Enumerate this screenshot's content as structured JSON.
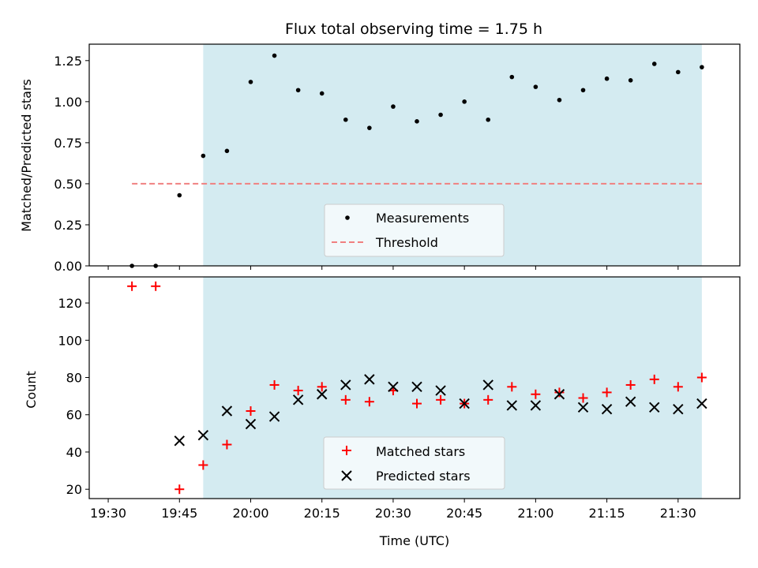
{
  "chart_data": [
    {
      "type": "scatter",
      "title": "Flux total observing time = 1.75 h",
      "ylabel": "Matched/Predicted stars",
      "ylim": [
        0,
        1.35
      ],
      "yticks": [
        "0.00",
        "0.25",
        "0.50",
        "0.75",
        "1.00",
        "1.25"
      ],
      "xlim_minutes": [
        1166,
        1303
      ],
      "shaded_range": [
        "19:50",
        "21:35"
      ],
      "shade_color": "#d4ebf1",
      "legend_position": "lower-center",
      "series": [
        {
          "name": "Measurements",
          "marker": "dot",
          "color": "#000000",
          "x": [
            "19:35",
            "19:40",
            "19:45",
            "19:50",
            "19:55",
            "20:00",
            "20:05",
            "20:10",
            "20:15",
            "20:20",
            "20:25",
            "20:30",
            "20:35",
            "20:40",
            "20:45",
            "20:50",
            "20:55",
            "21:00",
            "21:05",
            "21:10",
            "21:15",
            "21:20",
            "21:25",
            "21:30",
            "21:35"
          ],
          "y": [
            0.0,
            0.0,
            0.43,
            0.67,
            0.7,
            1.12,
            1.28,
            1.07,
            1.05,
            0.89,
            0.84,
            0.97,
            0.88,
            0.92,
            1.0,
            0.89,
            1.15,
            1.09,
            1.01,
            1.07,
            1.14,
            1.13,
            1.23,
            1.18,
            1.21
          ]
        }
      ],
      "threshold": {
        "name": "Threshold",
        "value": 0.5,
        "x_range": [
          "19:35",
          "21:35"
        ],
        "color": "#f08080",
        "style": "dashed"
      }
    },
    {
      "type": "scatter",
      "xlabel": "Time (UTC)",
      "ylabel": "Count",
      "ylim": [
        15,
        134
      ],
      "yticks": [
        "20",
        "40",
        "60",
        "80",
        "100",
        "120"
      ],
      "xlim_minutes": [
        1166,
        1303
      ],
      "xticks": [
        "19:30",
        "19:45",
        "20:00",
        "20:15",
        "20:30",
        "20:45",
        "21:00",
        "21:15",
        "21:30"
      ],
      "shaded_range": [
        "19:50",
        "21:35"
      ],
      "shade_color": "#d4ebf1",
      "legend_position": "lower-center",
      "series": [
        {
          "name": "Matched stars",
          "marker": "plus",
          "color": "#ff0000",
          "x": [
            "19:35",
            "19:40",
            "19:45",
            "19:50",
            "19:55",
            "20:00",
            "20:05",
            "20:10",
            "20:15",
            "20:20",
            "20:25",
            "20:30",
            "20:35",
            "20:40",
            "20:45",
            "20:50",
            "20:55",
            "21:00",
            "21:05",
            "21:10",
            "21:15",
            "21:20",
            "21:25",
            "21:30",
            "21:35"
          ],
          "y": [
            129,
            129,
            20,
            33,
            44,
            62,
            76,
            73,
            75,
            68,
            67,
            73,
            66,
            68,
            66,
            68,
            75,
            71,
            72,
            69,
            72,
            76,
            79,
            75,
            80
          ]
        },
        {
          "name": "Predicted stars",
          "marker": "x",
          "color": "#000000",
          "x": [
            "19:45",
            "19:50",
            "19:55",
            "20:00",
            "20:05",
            "20:10",
            "20:15",
            "20:20",
            "20:25",
            "20:30",
            "20:35",
            "20:40",
            "20:45",
            "20:50",
            "20:55",
            "21:00",
            "21:05",
            "21:10",
            "21:15",
            "21:20",
            "21:25",
            "21:30",
            "21:35"
          ],
          "y": [
            46,
            49,
            62,
            55,
            59,
            68,
            71,
            76,
            79,
            75,
            75,
            73,
            66,
            76,
            65,
            65,
            71,
            64,
            63,
            67,
            64,
            63,
            66
          ]
        }
      ]
    }
  ]
}
